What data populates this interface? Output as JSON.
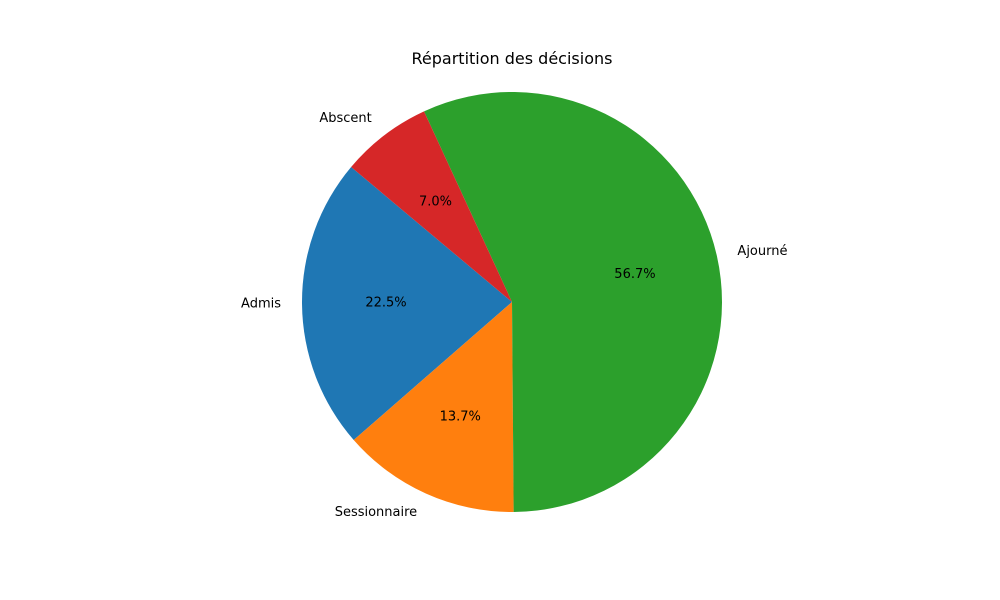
{
  "chart_data": {
    "type": "pie",
    "title": "Répartition des décisions",
    "start_angle_deg": 140,
    "direction": "counterclockwise",
    "slices": [
      {
        "label": "Admis",
        "value": 22.5,
        "pct_label": "22.5%",
        "color": "#1f77b4"
      },
      {
        "label": "Sessionnaire",
        "value": 13.7,
        "pct_label": "13.7%",
        "color": "#ff7f0e"
      },
      {
        "label": "Ajourné",
        "value": 56.7,
        "pct_label": "56.7%",
        "color": "#2ca02c"
      },
      {
        "label": "Abscent",
        "value": 7.0,
        "pct_label": "7.0%",
        "color": "#d62728"
      }
    ]
  }
}
